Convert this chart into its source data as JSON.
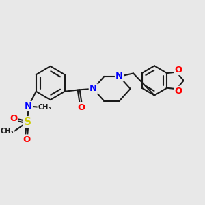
{
  "bg_color": "#e8e8e8",
  "bond_color": "#1a1a1a",
  "N_color": "#0000ff",
  "O_color": "#ff0000",
  "S_color": "#cccc00",
  "C_color": "#1a1a1a",
  "bond_width": 1.5,
  "font_size_atom": 9.5,
  "font_size_small": 7.5,
  "figsize": [
    3.0,
    3.0
  ],
  "dpi": 100,
  "xlim": [
    0,
    10
  ],
  "ylim": [
    0,
    10
  ]
}
